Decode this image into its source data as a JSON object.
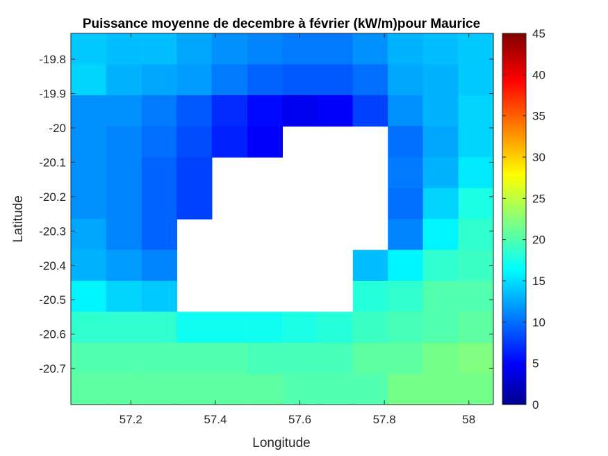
{
  "chart_data": {
    "type": "heatmap",
    "title": "Puissance moyenne de decembre à février (kW/m)pour Maurice",
    "xlabel": "Longitude",
    "ylabel": "Latitude",
    "colormap": "jet",
    "x_cell_width": 0.0833,
    "y_cell_height": 0.09,
    "x_centers": [
      57.1,
      57.183,
      57.267,
      57.35,
      57.433,
      57.517,
      57.6,
      57.683,
      57.767,
      57.85,
      57.933,
      58.017
    ],
    "y_centers": [
      -19.77,
      -19.86,
      -19.95,
      -20.04,
      -20.13,
      -20.22,
      -20.31,
      -20.4,
      -20.49,
      -20.58,
      -20.67,
      -20.76
    ],
    "xlim": [
      57.058,
      58.058
    ],
    "ylim": [
      -20.805,
      -19.725
    ],
    "xticks": [
      57.2,
      57.4,
      57.6,
      57.8,
      58
    ],
    "xtick_labels": [
      "57.2",
      "57.4",
      "57.6",
      "57.8",
      "58"
    ],
    "yticks": [
      -19.8,
      -19.9,
      -20,
      -20.1,
      -20.2,
      -20.3,
      -20.4,
      -20.5,
      -20.6,
      -20.7
    ],
    "ytick_labels": [
      "-19.8",
      "-19.9",
      "-20",
      "-20.1",
      "-20.2",
      "-20.3",
      "-20.4",
      "-20.5",
      "-20.6",
      "-20.7"
    ],
    "colorbar": {
      "min": 0,
      "max": 45,
      "ticks": [
        0,
        5,
        10,
        15,
        20,
        25,
        30,
        35,
        40,
        45
      ],
      "tick_labels": [
        "0",
        "5",
        "10",
        "15",
        "20",
        "25",
        "30",
        "35",
        "40",
        "45"
      ]
    },
    "values": [
      [
        14.5,
        14,
        14,
        13,
        12,
        11.5,
        11,
        11,
        12,
        13.5,
        14,
        14.5
      ],
      [
        15,
        13.5,
        13,
        12.5,
        11,
        10,
        9.5,
        9.5,
        10.5,
        13,
        13.5,
        14.5
      ],
      [
        12,
        12,
        11,
        9.5,
        7.5,
        6,
        5,
        5.5,
        8.5,
        12,
        13.5,
        15
      ],
      [
        12,
        11.5,
        10.5,
        9,
        7,
        5.5,
        null,
        null,
        null,
        10.5,
        13,
        15
      ],
      [
        12,
        11.5,
        10,
        8.5,
        null,
        null,
        null,
        null,
        null,
        11,
        13.5,
        16
      ],
      [
        12,
        11.5,
        10,
        8.5,
        null,
        null,
        null,
        null,
        null,
        10.5,
        15,
        18
      ],
      [
        13,
        11.5,
        10,
        null,
        null,
        null,
        null,
        null,
        null,
        11.5,
        16.5,
        19
      ],
      [
        13.5,
        12.5,
        11.5,
        null,
        null,
        null,
        null,
        null,
        14,
        16.5,
        19,
        19.5
      ],
      [
        16.5,
        15,
        14.5,
        null,
        null,
        null,
        null,
        null,
        18.5,
        19,
        20.5,
        20.5
      ],
      [
        19,
        19,
        19,
        17.5,
        17.5,
        17.5,
        18,
        18.5,
        19.5,
        20,
        20.5,
        21
      ],
      [
        20.5,
        20.5,
        20.5,
        20.5,
        20.5,
        20,
        20,
        20,
        21,
        21,
        22,
        22.5
      ],
      [
        21,
        21,
        21,
        21,
        21,
        21,
        20.5,
        20.5,
        20.5,
        22,
        22,
        22
      ]
    ]
  }
}
